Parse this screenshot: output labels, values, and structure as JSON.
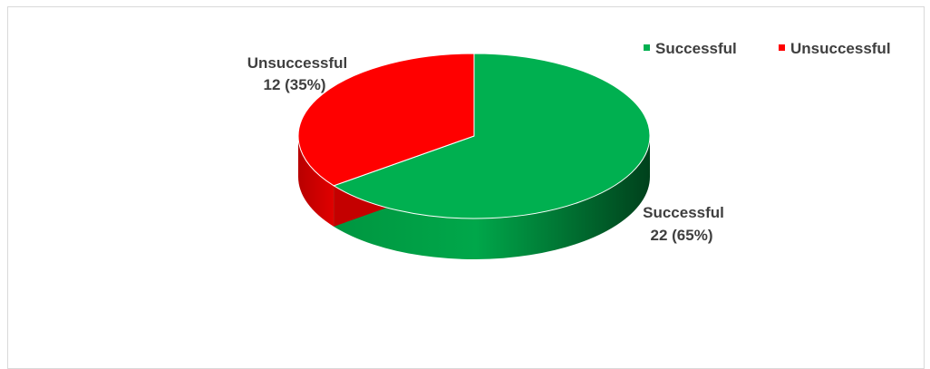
{
  "chart_data": {
    "type": "pie",
    "title": "",
    "slices": [
      {
        "name": "Successful",
        "value": 22,
        "percent": 65,
        "color": "#00b050",
        "label_line1": "Successful",
        "label_line2": "22 (65%)"
      },
      {
        "name": "Unsuccessful",
        "value": 12,
        "percent": 35,
        "color": "#ff0000",
        "label_line1": "Unsuccessful",
        "label_line2": "12 (35%)"
      }
    ],
    "legend": {
      "position": "top-right",
      "items": [
        {
          "label": "Successful",
          "color": "#00b050"
        },
        {
          "label": "Unsuccessful",
          "color": "#ff0000"
        }
      ]
    },
    "style": "3d"
  }
}
